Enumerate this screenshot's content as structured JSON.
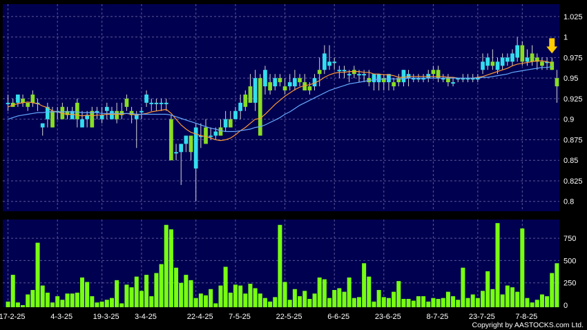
{
  "chart_data": [
    {
      "type": "candlestick",
      "panel": "price",
      "ylim": [
        0.788,
        1.04
      ],
      "yticks": [
        "1.025",
        "1",
        "0.975",
        "0.95",
        "0.925",
        "0.9",
        "0.875",
        "0.85",
        "0.825",
        "0.8"
      ],
      "xticks": [
        "17-2-25",
        "4-3-25",
        "19-3-25",
        "3-4-25",
        "22-4-25",
        "7-5-25",
        "22-5-25",
        "6-6-25",
        "23-6-25",
        "8-7-25",
        "23-7-25",
        "7-8-25"
      ],
      "grid": true,
      "background": "#000050",
      "up_color": "#33ddee",
      "down_color": "#88dd22",
      "candles": [
        {
          "o": 0.92,
          "h": 0.93,
          "l": 0.91,
          "c": 0.92
        },
        {
          "o": 0.92,
          "h": 0.925,
          "l": 0.915,
          "c": 0.915
        },
        {
          "o": 0.92,
          "h": 0.93,
          "l": 0.915,
          "c": 0.93
        },
        {
          "o": 0.925,
          "h": 0.93,
          "l": 0.915,
          "c": 0.92
        },
        {
          "o": 0.92,
          "h": 0.92,
          "l": 0.91,
          "c": 0.915
        },
        {
          "o": 0.93,
          "h": 0.935,
          "l": 0.915,
          "c": 0.92
        },
        {
          "o": 0.92,
          "h": 0.925,
          "l": 0.91,
          "c": 0.92
        },
        {
          "o": 0.89,
          "h": 0.895,
          "l": 0.88,
          "c": 0.895
        },
        {
          "o": 0.9,
          "h": 0.92,
          "l": 0.89,
          "c": 0.915
        },
        {
          "o": 0.91,
          "h": 0.915,
          "l": 0.89,
          "c": 0.89
        },
        {
          "o": 0.91,
          "h": 0.915,
          "l": 0.9,
          "c": 0.91
        },
        {
          "o": 0.915,
          "h": 0.92,
          "l": 0.9,
          "c": 0.9
        },
        {
          "o": 0.91,
          "h": 0.915,
          "l": 0.9,
          "c": 0.905
        },
        {
          "o": 0.9,
          "h": 0.915,
          "l": 0.9,
          "c": 0.91
        },
        {
          "o": 0.92,
          "h": 0.925,
          "l": 0.89,
          "c": 0.9
        },
        {
          "o": 0.89,
          "h": 0.91,
          "l": 0.89,
          "c": 0.9
        },
        {
          "o": 0.9,
          "h": 0.91,
          "l": 0.89,
          "c": 0.905
        },
        {
          "o": 0.91,
          "h": 0.915,
          "l": 0.89,
          "c": 0.89
        },
        {
          "o": 0.91,
          "h": 0.915,
          "l": 0.9,
          "c": 0.91
        },
        {
          "o": 0.9,
          "h": 0.915,
          "l": 0.895,
          "c": 0.905
        },
        {
          "o": 0.91,
          "h": 0.92,
          "l": 0.9,
          "c": 0.915
        },
        {
          "o": 0.9,
          "h": 0.915,
          "l": 0.9,
          "c": 0.91
        },
        {
          "o": 0.91,
          "h": 0.92,
          "l": 0.895,
          "c": 0.9
        },
        {
          "o": 0.91,
          "h": 0.92,
          "l": 0.9,
          "c": 0.905
        },
        {
          "o": 0.925,
          "h": 0.93,
          "l": 0.91,
          "c": 0.915
        },
        {
          "o": 0.91,
          "h": 0.915,
          "l": 0.895,
          "c": 0.905
        },
        {
          "o": 0.9,
          "h": 0.91,
          "l": 0.865,
          "c": 0.905
        },
        {
          "o": 0.91,
          "h": 0.915,
          "l": 0.9,
          "c": 0.91
        },
        {
          "o": 0.92,
          "h": 0.935,
          "l": 0.915,
          "c": 0.93
        },
        {
          "o": 0.92,
          "h": 0.925,
          "l": 0.91,
          "c": 0.92
        },
        {
          "o": 0.92,
          "h": 0.925,
          "l": 0.91,
          "c": 0.92
        },
        {
          "o": 0.92,
          "h": 0.925,
          "l": 0.91,
          "c": 0.92
        },
        {
          "o": 0.92,
          "h": 0.925,
          "l": 0.91,
          "c": 0.92
        },
        {
          "o": 0.9,
          "h": 0.905,
          "l": 0.85,
          "c": 0.85
        },
        {
          "o": 0.86,
          "h": 0.87,
          "l": 0.85,
          "c": 0.86
        },
        {
          "o": 0.86,
          "h": 0.87,
          "l": 0.82,
          "c": 0.87
        },
        {
          "o": 0.87,
          "h": 0.88,
          "l": 0.86,
          "c": 0.88
        },
        {
          "o": 0.88,
          "h": 0.88,
          "l": 0.85,
          "c": 0.86
        },
        {
          "o": 0.84,
          "h": 0.895,
          "l": 0.8,
          "c": 0.89
        },
        {
          "o": 0.88,
          "h": 0.895,
          "l": 0.865,
          "c": 0.88
        },
        {
          "o": 0.89,
          "h": 0.9,
          "l": 0.87,
          "c": 0.87
        },
        {
          "o": 0.88,
          "h": 0.89,
          "l": 0.875,
          "c": 0.88
        },
        {
          "o": 0.88,
          "h": 0.89,
          "l": 0.875,
          "c": 0.885
        },
        {
          "o": 0.89,
          "h": 0.9,
          "l": 0.88,
          "c": 0.88
        },
        {
          "o": 0.89,
          "h": 0.91,
          "l": 0.885,
          "c": 0.9
        },
        {
          "o": 0.9,
          "h": 0.91,
          "l": 0.89,
          "c": 0.89
        },
        {
          "o": 0.9,
          "h": 0.915,
          "l": 0.9,
          "c": 0.91
        },
        {
          "o": 0.91,
          "h": 0.93,
          "l": 0.9,
          "c": 0.92
        },
        {
          "o": 0.93,
          "h": 0.935,
          "l": 0.91,
          "c": 0.915
        },
        {
          "o": 0.94,
          "h": 0.955,
          "l": 0.92,
          "c": 0.92
        },
        {
          "o": 0.92,
          "h": 0.96,
          "l": 0.91,
          "c": 0.95
        },
        {
          "o": 0.95,
          "h": 0.955,
          "l": 0.88,
          "c": 0.88
        },
        {
          "o": 0.94,
          "h": 0.965,
          "l": 0.93,
          "c": 0.96
        },
        {
          "o": 0.945,
          "h": 0.955,
          "l": 0.93,
          "c": 0.935
        },
        {
          "o": 0.94,
          "h": 0.955,
          "l": 0.935,
          "c": 0.95
        },
        {
          "o": 0.95,
          "h": 0.955,
          "l": 0.94,
          "c": 0.945
        },
        {
          "o": 0.94,
          "h": 0.95,
          "l": 0.93,
          "c": 0.935
        },
        {
          "o": 0.94,
          "h": 0.955,
          "l": 0.935,
          "c": 0.945
        },
        {
          "o": 0.94,
          "h": 0.96,
          "l": 0.935,
          "c": 0.95
        },
        {
          "o": 0.95,
          "h": 0.955,
          "l": 0.94,
          "c": 0.945
        },
        {
          "o": 0.945,
          "h": 0.955,
          "l": 0.935,
          "c": 0.935
        },
        {
          "o": 0.94,
          "h": 0.945,
          "l": 0.93,
          "c": 0.935
        },
        {
          "o": 0.94,
          "h": 0.955,
          "l": 0.935,
          "c": 0.95
        },
        {
          "o": 0.96,
          "h": 0.975,
          "l": 0.94,
          "c": 0.955
        },
        {
          "o": 0.96,
          "h": 0.99,
          "l": 0.955,
          "c": 0.98
        },
        {
          "o": 0.965,
          "h": 0.99,
          "l": 0.96,
          "c": 0.97
        },
        {
          "o": 0.97,
          "h": 0.975,
          "l": 0.96,
          "c": 0.97
        },
        {
          "o": 0.96,
          "h": 0.965,
          "l": 0.95,
          "c": 0.96
        },
        {
          "o": 0.96,
          "h": 0.965,
          "l": 0.95,
          "c": 0.96
        },
        {
          "o": 0.955,
          "h": 0.96,
          "l": 0.945,
          "c": 0.955
        },
        {
          "o": 0.96,
          "h": 0.965,
          "l": 0.95,
          "c": 0.955
        },
        {
          "o": 0.955,
          "h": 0.96,
          "l": 0.945,
          "c": 0.955
        },
        {
          "o": 0.955,
          "h": 0.96,
          "l": 0.945,
          "c": 0.955
        },
        {
          "o": 0.95,
          "h": 0.96,
          "l": 0.94,
          "c": 0.945
        },
        {
          "o": 0.945,
          "h": 0.955,
          "l": 0.935,
          "c": 0.955
        },
        {
          "o": 0.945,
          "h": 0.955,
          "l": 0.935,
          "c": 0.955
        },
        {
          "o": 0.95,
          "h": 0.955,
          "l": 0.935,
          "c": 0.945
        },
        {
          "o": 0.945,
          "h": 0.955,
          "l": 0.935,
          "c": 0.955
        },
        {
          "o": 0.945,
          "h": 0.95,
          "l": 0.935,
          "c": 0.94
        },
        {
          "o": 0.95,
          "h": 0.955,
          "l": 0.94,
          "c": 0.945
        },
        {
          "o": 0.945,
          "h": 0.96,
          "l": 0.94,
          "c": 0.96
        },
        {
          "o": 0.95,
          "h": 0.96,
          "l": 0.94,
          "c": 0.955
        },
        {
          "o": 0.95,
          "h": 0.955,
          "l": 0.945,
          "c": 0.95
        },
        {
          "o": 0.95,
          "h": 0.955,
          "l": 0.945,
          "c": 0.95
        },
        {
          "o": 0.95,
          "h": 0.955,
          "l": 0.945,
          "c": 0.95
        },
        {
          "o": 0.95,
          "h": 0.96,
          "l": 0.945,
          "c": 0.955
        },
        {
          "o": 0.96,
          "h": 0.965,
          "l": 0.95,
          "c": 0.955
        },
        {
          "o": 0.96,
          "h": 0.965,
          "l": 0.945,
          "c": 0.95
        },
        {
          "o": 0.95,
          "h": 0.955,
          "l": 0.945,
          "c": 0.95
        },
        {
          "o": 0.95,
          "h": 0.955,
          "l": 0.94,
          "c": 0.945
        },
        {
          "o": 0.945,
          "h": 0.95,
          "l": 0.94,
          "c": 0.945
        },
        {
          "o": 0.95,
          "h": 0.95,
          "l": 0.945,
          "c": 0.95
        },
        {
          "o": 0.95,
          "h": 0.955,
          "l": 0.945,
          "c": 0.95
        },
        {
          "o": 0.95,
          "h": 0.955,
          "l": 0.945,
          "c": 0.95
        },
        {
          "o": 0.95,
          "h": 0.955,
          "l": 0.945,
          "c": 0.95
        },
        {
          "o": 0.95,
          "h": 0.955,
          "l": 0.945,
          "c": 0.95
        },
        {
          "o": 0.96,
          "h": 0.98,
          "l": 0.955,
          "c": 0.97
        },
        {
          "o": 0.965,
          "h": 0.98,
          "l": 0.96,
          "c": 0.975
        },
        {
          "o": 0.97,
          "h": 0.985,
          "l": 0.96,
          "c": 0.965
        },
        {
          "o": 0.96,
          "h": 0.975,
          "l": 0.955,
          "c": 0.97
        },
        {
          "o": 0.965,
          "h": 0.98,
          "l": 0.96,
          "c": 0.975
        },
        {
          "o": 0.97,
          "h": 0.98,
          "l": 0.965,
          "c": 0.975
        },
        {
          "o": 0.97,
          "h": 0.985,
          "l": 0.965,
          "c": 0.98
        },
        {
          "o": 0.975,
          "h": 1.0,
          "l": 0.97,
          "c": 0.99
        },
        {
          "o": 0.99,
          "h": 0.995,
          "l": 0.965,
          "c": 0.97
        },
        {
          "o": 0.97,
          "h": 0.985,
          "l": 0.965,
          "c": 0.975
        },
        {
          "o": 0.98,
          "h": 0.99,
          "l": 0.965,
          "c": 0.97
        },
        {
          "o": 0.975,
          "h": 0.98,
          "l": 0.96,
          "c": 0.97
        },
        {
          "o": 0.97,
          "h": 0.975,
          "l": 0.96,
          "c": 0.965
        },
        {
          "o": 0.97,
          "h": 0.975,
          "l": 0.96,
          "c": 0.97
        },
        {
          "o": 0.97,
          "h": 0.975,
          "l": 0.96,
          "c": 0.96
        },
        {
          "o": 0.95,
          "h": 0.96,
          "l": 0.92,
          "c": 0.94
        }
      ],
      "series": [
        {
          "color": "#ff9933",
          "values": [
            0.915,
            0.917,
            0.919,
            0.92,
            0.921,
            0.92,
            0.919,
            0.916,
            0.914,
            0.91,
            0.909,
            0.907,
            0.906,
            0.906,
            0.905,
            0.904,
            0.905,
            0.904,
            0.905,
            0.905,
            0.906,
            0.906,
            0.906,
            0.906,
            0.907,
            0.906,
            0.905,
            0.906,
            0.907,
            0.909,
            0.91,
            0.911,
            0.912,
            0.907,
            0.9,
            0.893,
            0.888,
            0.884,
            0.882,
            0.88,
            0.879,
            0.877,
            0.875,
            0.874,
            0.875,
            0.877,
            0.881,
            0.886,
            0.89,
            0.895,
            0.9,
            0.901,
            0.906,
            0.912,
            0.918,
            0.923,
            0.928,
            0.932,
            0.936,
            0.939,
            0.941,
            0.942,
            0.944,
            0.947,
            0.951,
            0.954,
            0.956,
            0.957,
            0.957,
            0.958,
            0.958,
            0.958,
            0.957,
            0.957,
            0.955,
            0.955,
            0.954,
            0.954,
            0.953,
            0.951,
            0.951,
            0.952,
            0.952,
            0.952,
            0.952,
            0.952,
            0.952,
            0.952,
            0.952,
            0.951,
            0.951,
            0.95,
            0.95,
            0.95,
            0.95,
            0.951,
            0.952,
            0.954,
            0.956,
            0.958,
            0.96,
            0.962,
            0.965,
            0.967,
            0.968,
            0.969,
            0.97,
            0.971,
            0.971,
            0.97,
            0.968
          ]
        },
        {
          "color": "#66aaff",
          "values": [
            0.9,
            0.902,
            0.904,
            0.905,
            0.906,
            0.907,
            0.908,
            0.908,
            0.909,
            0.909,
            0.909,
            0.909,
            0.909,
            0.909,
            0.909,
            0.908,
            0.908,
            0.908,
            0.908,
            0.907,
            0.907,
            0.907,
            0.907,
            0.907,
            0.907,
            0.907,
            0.906,
            0.906,
            0.906,
            0.906,
            0.906,
            0.906,
            0.906,
            0.905,
            0.903,
            0.901,
            0.899,
            0.897,
            0.895,
            0.893,
            0.891,
            0.889,
            0.888,
            0.886,
            0.885,
            0.885,
            0.885,
            0.886,
            0.887,
            0.888,
            0.89,
            0.891,
            0.893,
            0.896,
            0.899,
            0.902,
            0.906,
            0.909,
            0.913,
            0.917,
            0.92,
            0.923,
            0.926,
            0.929,
            0.932,
            0.935,
            0.937,
            0.939,
            0.941,
            0.943,
            0.944,
            0.945,
            0.946,
            0.947,
            0.948,
            0.948,
            0.949,
            0.949,
            0.949,
            0.949,
            0.949,
            0.95,
            0.95,
            0.95,
            0.95,
            0.95,
            0.95,
            0.95,
            0.95,
            0.95,
            0.95,
            0.95,
            0.95,
            0.95,
            0.95,
            0.95,
            0.951,
            0.951,
            0.952,
            0.953,
            0.954,
            0.955,
            0.957,
            0.958,
            0.959,
            0.96,
            0.961,
            0.962,
            0.963,
            0.963,
            0.964
          ]
        }
      ],
      "marker": {
        "color": "#ffcc00"
      }
    },
    {
      "type": "bar",
      "panel": "volume",
      "ylim": [
        0,
        960
      ],
      "yticks": [
        "750",
        "500",
        "250",
        "0"
      ],
      "bar_color": "#77ff11",
      "values": [
        40,
        340,
        30,
        0,
        120,
        170,
        700,
        220,
        140,
        30,
        100,
        60,
        130,
        130,
        140,
        310,
        260,
        100,
        30,
        40,
        60,
        80,
        280,
        20,
        230,
        200,
        320,
        160,
        340,
        100,
        360,
        460,
        900,
        850,
        420,
        250,
        340,
        280,
        80,
        130,
        110,
        180,
        20,
        220,
        430,
        140,
        230,
        220,
        130,
        240,
        190,
        130,
        80,
        40,
        90,
        900,
        260,
        60,
        180,
        100,
        160,
        70,
        130,
        310,
        290,
        80,
        170,
        190,
        150,
        310,
        80,
        90,
        470,
        320,
        40,
        170,
        90,
        80,
        150,
        270,
        70,
        70,
        50,
        100,
        100,
        40,
        80,
        70,
        80,
        150,
        100,
        60,
        420,
        80,
        120,
        80,
        160,
        380,
        180,
        920,
        120,
        220,
        200,
        150,
        860,
        80,
        30,
        60,
        120,
        100,
        360,
        470
      ]
    }
  ],
  "copyright": "Copyright by AASTOCKS.com Ltd."
}
